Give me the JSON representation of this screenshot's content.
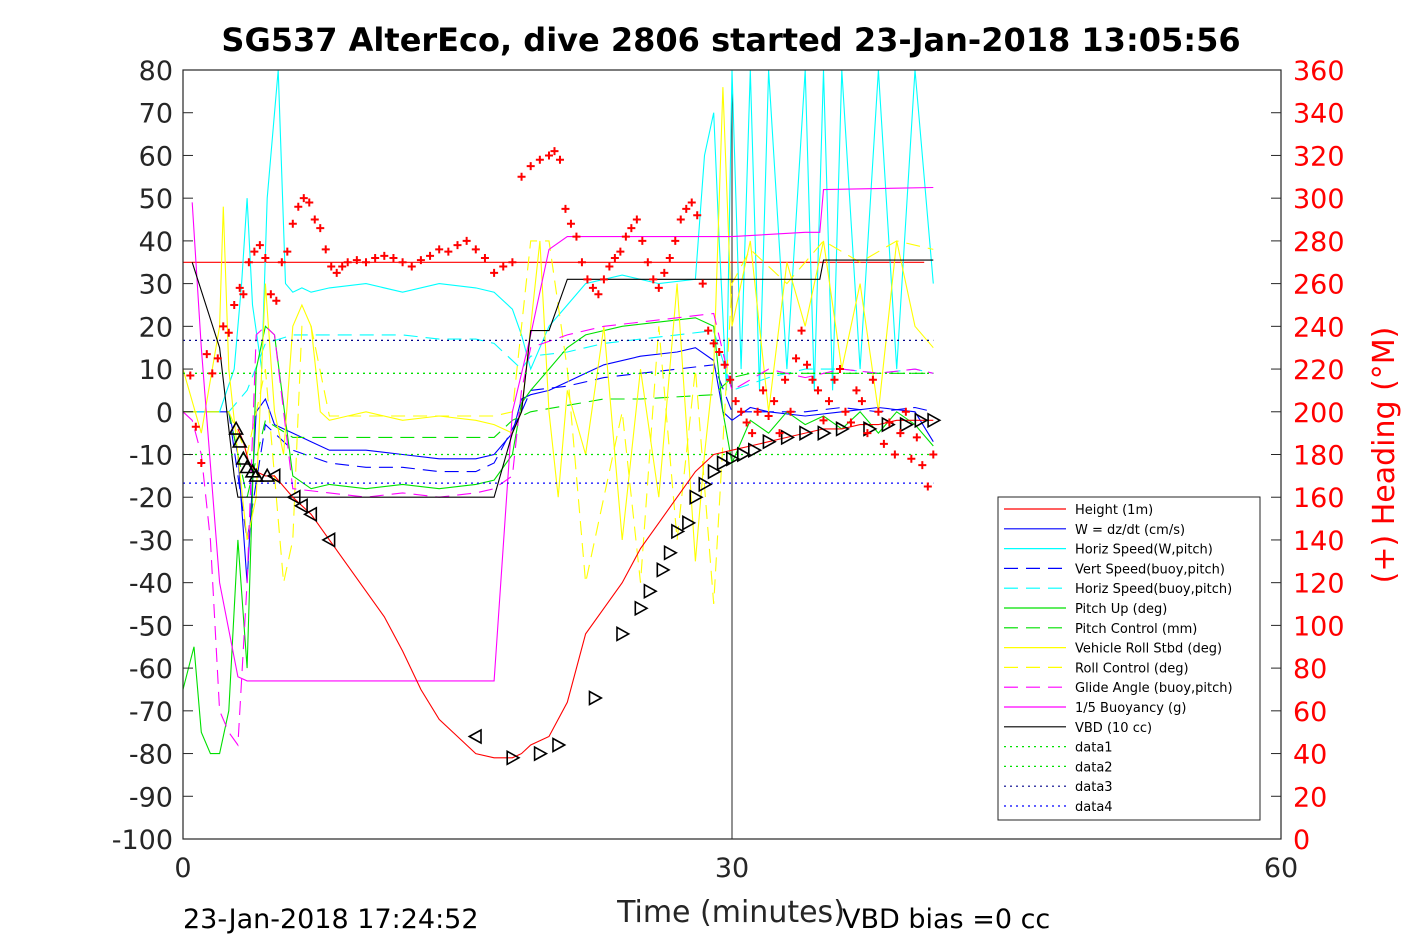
{
  "chart_data": {
    "type": "line",
    "title": "SG537 AlterEco, dive 2806 started 23-Jan-2018 13:05:56",
    "xlabel": "Time (minutes)",
    "ylabel_left": "",
    "ylabel_right": "(+) Heading (°M)",
    "xlim": [
      0,
      60
    ],
    "ylim_left": [
      -100,
      80
    ],
    "ylim_right": [
      0,
      360
    ],
    "x_ticks": [
      "0",
      "30",
      "60"
    ],
    "y_left_ticks": [
      "80",
      "70",
      "60",
      "50",
      "40",
      "30",
      "20",
      "10",
      "0",
      "-10",
      "-20",
      "-30",
      "-40",
      "-50",
      "-60",
      "-70",
      "-80",
      "-90",
      "-100"
    ],
    "y_right_ticks": [
      "360",
      "340",
      "320",
      "300",
      "280",
      "260",
      "240",
      "220",
      "200",
      "180",
      "160",
      "140",
      "120",
      "100",
      "80",
      "60",
      "40",
      "20",
      "0"
    ],
    "footer_left": "23-Jan-2018 17:24:52",
    "footer_right": "VBD bias =0 cc",
    "legend_position": "bottom-right",
    "grid": "x=30 only",
    "colors": {
      "red": "#ff0000",
      "blue": "#0000ff",
      "cyan": "#00ffff",
      "green": "#00e000",
      "yellow": "#ffff00",
      "magenta": "#ff00ff",
      "black": "#000000",
      "navy": "#00008b"
    },
    "series": [
      {
        "name": "Height (1m)",
        "color": "#ff0000",
        "dash": "solid",
        "x": [
          0,
          40.5
        ],
        "y": [
          35,
          35
        ]
      },
      {
        "name": "W = dz/dt (cm/s)",
        "color": "#0000ff",
        "dash": "solid",
        "x": [
          0,
          2.5,
          3.0,
          3.5,
          4.0,
          4.5,
          5,
          5.5,
          6,
          7,
          8,
          10,
          12,
          14,
          16,
          17,
          18,
          18.5,
          19,
          20,
          21,
          22,
          23,
          25,
          27,
          28,
          29,
          29.5,
          30,
          31,
          32,
          34,
          36,
          38,
          40,
          41
        ],
        "y": [
          0,
          0,
          -10,
          -40,
          0,
          3,
          -3,
          -4,
          -5,
          -7,
          -9,
          -9,
          -10,
          -11,
          -11,
          -10,
          -5,
          3,
          4,
          5,
          7,
          9,
          11,
          13,
          14,
          15,
          12,
          0,
          -2,
          1,
          0,
          -1,
          0,
          1,
          0,
          -7
        ]
      },
      {
        "name": "Horiz Speed(W,pitch)",
        "color": "#00ffff",
        "dash": "solid",
        "x": [
          0,
          2,
          2.8,
          3.2,
          3.5,
          3.8,
          4.3,
          4.6,
          5.2,
          5.6,
          6,
          6.5,
          7,
          8,
          10,
          12,
          14,
          16,
          17,
          18,
          18.5,
          19,
          20,
          21,
          22,
          24,
          26,
          28,
          28.5,
          29,
          29.3,
          29.7,
          30,
          30.5,
          31,
          31.5,
          32,
          33,
          34,
          34.5,
          35,
          35.5,
          36,
          37,
          38,
          39,
          40,
          41
        ],
        "y": [
          0,
          0,
          10,
          30,
          50,
          25,
          10,
          50,
          80,
          30,
          28,
          29,
          28,
          29,
          30,
          28,
          30,
          29,
          28,
          24,
          18,
          10,
          20,
          25,
          30,
          32,
          30,
          31,
          60,
          70,
          40,
          5,
          80,
          10,
          80,
          5,
          80,
          10,
          80,
          5,
          80,
          5,
          80,
          10,
          80,
          10,
          80,
          30
        ]
      },
      {
        "name": "Vert Speed(buoy,pitch)",
        "color": "#0000ff",
        "dash": "dashed",
        "x": [
          0,
          2.5,
          3.5,
          4.5,
          6,
          8,
          10,
          12,
          14,
          16,
          17,
          18.5,
          19,
          21,
          23,
          25,
          27,
          29,
          30,
          32,
          34,
          36,
          38,
          40,
          41
        ],
        "y": [
          0,
          0,
          -30,
          -3,
          -9,
          -12,
          -13,
          -13,
          -14,
          -14,
          -12,
          0,
          5,
          6,
          8,
          9,
          10,
          11,
          0,
          0,
          0,
          1,
          0,
          1,
          0
        ]
      },
      {
        "name": "Horiz Speed(buoy,pitch)",
        "color": "#00ffff",
        "dash": "dashed",
        "x": [
          0,
          2.5,
          3.5,
          4.5,
          6,
          8,
          10,
          12,
          14,
          16,
          17,
          18.5,
          19,
          21,
          23,
          25,
          27,
          29,
          30,
          32,
          34,
          36,
          38,
          40,
          41
        ],
        "y": [
          0,
          0,
          5,
          16,
          18,
          18,
          18,
          18,
          17,
          17,
          16,
          10,
          13,
          14,
          16,
          17,
          18,
          19,
          5,
          8,
          10,
          10,
          9,
          10,
          9
        ]
      },
      {
        "name": "Pitch Up (deg)",
        "color": "#00e000",
        "dash": "solid",
        "x": [
          0,
          0.6,
          1,
          1.5,
          2,
          2.5,
          3,
          3.5,
          4,
          4.5,
          5,
          6,
          7,
          8,
          10,
          12,
          14,
          16,
          17,
          18,
          18.5,
          19,
          20,
          21,
          22,
          24,
          26,
          28,
          29,
          29.5,
          30,
          31,
          32,
          33,
          34,
          35,
          36,
          37,
          38,
          39,
          40,
          41
        ],
        "y": [
          -65,
          -55,
          -75,
          -80,
          -80,
          -70,
          -30,
          -60,
          10,
          20,
          18,
          -15,
          -18,
          -17,
          -18,
          -17,
          -18,
          -17,
          -16,
          -10,
          2,
          5,
          10,
          15,
          18,
          20,
          21,
          22,
          20,
          0,
          -12,
          -2,
          -5,
          0,
          -3,
          -1,
          -4,
          0,
          -5,
          0,
          -3,
          -8
        ]
      },
      {
        "name": "Pitch Control (mm)",
        "color": "#00e000",
        "dash": "dashed",
        "x": [
          0,
          2.5,
          3.5,
          4.5,
          6,
          17,
          18,
          19,
          23,
          25,
          29,
          30,
          31,
          41
        ],
        "y": [
          0,
          0,
          -20,
          -2,
          -6,
          -6,
          -2,
          0,
          3,
          3,
          4,
          8,
          9,
          9
        ]
      },
      {
        "name": "Vehicle Roll Stbd (deg)",
        "color": "#ffff00",
        "dash": "solid",
        "x": [
          0,
          1,
          2,
          2.2,
          2.5,
          3,
          3.5,
          4,
          4.5,
          5,
          5.5,
          6,
          6.5,
          7,
          7.5,
          8,
          9,
          10,
          12,
          14,
          16,
          17,
          18,
          18.5,
          19,
          19.5,
          20,
          20.5,
          21,
          22,
          23,
          24,
          25,
          26,
          27,
          28,
          28.5,
          29,
          29.5,
          30,
          31,
          32,
          33,
          34,
          35,
          36,
          37,
          38,
          39,
          40,
          41
        ],
        "y": [
          10,
          -5,
          20,
          48,
          10,
          -10,
          -30,
          -20,
          30,
          0,
          -10,
          20,
          25,
          20,
          0,
          -2,
          -1,
          0,
          -2,
          -1,
          -2,
          -3,
          -5,
          0,
          20,
          40,
          0,
          -20,
          5,
          -10,
          20,
          -30,
          10,
          -20,
          30,
          -35,
          -10,
          10,
          76,
          20,
          40,
          0,
          35,
          20,
          40,
          10,
          30,
          0,
          40,
          20,
          15
        ]
      },
      {
        "name": "Roll Control (deg)",
        "color": "#ffff00",
        "dash": "dashed",
        "x": [
          0,
          2.5,
          3.5,
          4.5,
          5.5,
          6,
          6.5,
          7,
          8,
          17,
          18,
          19,
          20,
          21,
          22,
          23,
          24,
          25,
          26,
          27,
          28,
          29,
          30,
          31,
          33,
          35,
          37,
          39,
          41
        ],
        "y": [
          0,
          0,
          -10,
          10,
          -40,
          -30,
          20,
          20,
          -1,
          -1,
          0,
          40,
          40,
          10,
          -40,
          -20,
          0,
          -40,
          20,
          -30,
          10,
          -45,
          30,
          38,
          30,
          40,
          35,
          40,
          38
        ]
      },
      {
        "name": "Glide Angle (buoy,pitch)",
        "color": "#ff00ff",
        "dash": "dashed",
        "x": [
          0,
          0.5,
          1,
          1.5,
          2,
          2.5,
          3,
          3.5,
          4,
          4.5,
          5,
          6,
          8,
          10,
          12,
          14,
          16,
          17,
          18,
          18.5,
          19,
          21,
          23,
          25,
          27,
          29,
          30,
          32,
          34,
          36,
          38,
          40,
          41
        ],
        "y": [
          0,
          -2,
          -10,
          -30,
          -70,
          -75,
          -78,
          -40,
          18,
          20,
          18,
          -18,
          -19,
          -20,
          -19,
          -20,
          -19,
          -18,
          -15,
          5,
          15,
          18,
          20,
          21,
          22,
          23,
          5,
          10,
          8,
          10,
          9,
          10,
          9
        ]
      },
      {
        "name": "1/5 Buoyancy (g)",
        "color": "#ff00ff",
        "dash": "solid",
        "x": [
          0.5,
          1,
          2,
          3,
          3.5,
          5,
          10,
          16,
          17,
          18,
          19,
          20,
          21,
          30,
          34,
          34.8,
          35,
          41
        ],
        "y": [
          49,
          15,
          -40,
          -62,
          -63,
          -63,
          -63,
          -63,
          -63,
          0,
          18,
          38,
          41,
          41,
          42,
          42,
          52,
          52.5
        ]
      },
      {
        "name": "VBD (10 cc)",
        "color": "#000000",
        "dash": "solid",
        "x": [
          0.5,
          2,
          2.8,
          3,
          5,
          10,
          16,
          17,
          18,
          18.5,
          19,
          20,
          21,
          30,
          34,
          34.8,
          35,
          41
        ],
        "y": [
          35,
          15,
          -15,
          -20,
          -20,
          -20,
          -20,
          -20,
          -5,
          0,
          19,
          19,
          31,
          31,
          31,
          31,
          35.5,
          35.5
        ]
      },
      {
        "name": "data1",
        "color": "#00e000",
        "dash": "dotted",
        "x": [
          0,
          41
        ],
        "y": [
          9,
          9
        ]
      },
      {
        "name": "data2",
        "color": "#00e000",
        "dash": "dotted",
        "x": [
          0,
          41
        ],
        "y": [
          -10,
          -10
        ]
      },
      {
        "name": "data3",
        "color": "#00008b",
        "dash": "dotted",
        "x": [
          0,
          41
        ],
        "y": [
          16.7,
          16.7
        ]
      },
      {
        "name": "data4",
        "color": "#0000ff",
        "dash": "dotted",
        "x": [
          0,
          41
        ],
        "y": [
          -16.7,
          -16.7
        ]
      }
    ],
    "depth_path": {
      "color": "#ff0000",
      "x": [
        3,
        3.3,
        3.6,
        4,
        4.5,
        5,
        6,
        7,
        8,
        9,
        10,
        11,
        12,
        13,
        14,
        15,
        16,
        17,
        18,
        18.5,
        19,
        20,
        21,
        22,
        23,
        24,
        25,
        26,
        27,
        28,
        29,
        30,
        31,
        32,
        33,
        34,
        35,
        36,
        37,
        38,
        39,
        40,
        41
      ],
      "y": [
        -4,
        -7,
        -12,
        -14,
        -15,
        -15,
        -20,
        -24,
        -30,
        -36,
        -42,
        -48,
        -56,
        -65,
        -72,
        -76,
        -80,
        -81,
        -81,
        -80,
        -78,
        -76,
        -68,
        -52,
        -46,
        -40,
        -32,
        -26,
        -20,
        -14,
        -10,
        -9,
        -8,
        -7,
        -6,
        -5,
        -4,
        -4,
        -3,
        -3,
        -2,
        -2,
        -2
      ],
      "markers_x": [
        2.9,
        3.1,
        3.3,
        3.5,
        3.8,
        4.0,
        4.6,
        5.0,
        6.1,
        6.5,
        7.0,
        8.0,
        16.0,
        18.0,
        19.5,
        20.5,
        22.5,
        24.0,
        25.0,
        25.5,
        26.2,
        26.6,
        27.0,
        27.6,
        28.0,
        28.5,
        29.0,
        29.5,
        30.0,
        30.6,
        31.2,
        32.0,
        33.0,
        34.0,
        35.0,
        36.0,
        37.5,
        38.5,
        39.5,
        40.3,
        41.0
      ],
      "markers_y": [
        -4,
        -7,
        -11,
        -13,
        -14,
        -15,
        -15,
        -15,
        -20,
        -22,
        -24,
        -30,
        -76,
        -81,
        -80,
        -78,
        -67,
        -52,
        -46,
        -42,
        -37,
        -33,
        -28,
        -26,
        -20,
        -17,
        -14,
        -12,
        -11,
        -10,
        -9,
        -7,
        -6,
        -5,
        -5,
        -4,
        -4,
        -3,
        -3,
        -2,
        -2
      ]
    },
    "heading": {
      "name": "(+) Heading (°M)",
      "color": "#ff0000",
      "x": [
        0.4,
        0.7,
        1.0,
        1.3,
        1.6,
        1.9,
        2.2,
        2.5,
        2.8,
        3.1,
        3.3,
        3.6,
        3.9,
        4.2,
        4.5,
        4.8,
        5.1,
        5.4,
        5.7,
        6.0,
        6.3,
        6.6,
        6.9,
        7.2,
        7.5,
        7.8,
        8.1,
        8.4,
        8.7,
        9.0,
        9.5,
        10,
        10.5,
        11,
        11.5,
        12,
        12.5,
        13,
        13.5,
        14,
        14.5,
        15,
        15.5,
        16,
        16.5,
        17,
        17.5,
        18,
        18.5,
        19,
        19.5,
        20,
        20.3,
        20.6,
        20.9,
        21.2,
        21.5,
        21.8,
        22.1,
        22.4,
        22.7,
        23,
        23.3,
        23.6,
        23.9,
        24.2,
        24.5,
        24.8,
        25.1,
        25.4,
        25.7,
        26,
        26.3,
        26.6,
        26.9,
        27.2,
        27.5,
        27.8,
        28.1,
        28.4,
        28.7,
        29,
        29.3,
        29.6,
        29.9,
        30.2,
        30.5,
        30.8,
        31.1,
        31.4,
        31.7,
        32.0,
        32.3,
        32.6,
        32.9,
        33.2,
        33.5,
        33.8,
        34.1,
        34.4,
        34.7,
        35.0,
        35.3,
        35.6,
        35.9,
        36.2,
        36.5,
        36.8,
        37.1,
        37.4,
        37.7,
        38.0,
        38.3,
        38.6,
        38.9,
        39.2,
        39.5,
        39.8,
        40.1,
        40.4,
        40.7,
        41.0
      ],
      "y": [
        217,
        193,
        176,
        227,
        218,
        225,
        240,
        237,
        250,
        258,
        255,
        270,
        275,
        278,
        272,
        255,
        252,
        270,
        275,
        288,
        296,
        300,
        298,
        290,
        286,
        276,
        268,
        265,
        268,
        270,
        271,
        270,
        272,
        273,
        272,
        270,
        268,
        271,
        273,
        276,
        275,
        278,
        280,
        276,
        272,
        265,
        268,
        270,
        310,
        315,
        318,
        320,
        322,
        318,
        295,
        288,
        282,
        270,
        262,
        258,
        255,
        262,
        268,
        272,
        275,
        282,
        286,
        290,
        280,
        270,
        262,
        258,
        265,
        272,
        280,
        290,
        295,
        298,
        292,
        260,
        238,
        232,
        228,
        222,
        215,
        205,
        200,
        195,
        190,
        200,
        210,
        198,
        205,
        190,
        215,
        200,
        225,
        238,
        222,
        215,
        210,
        196,
        205,
        215,
        220,
        200,
        195,
        210,
        205,
        190,
        215,
        200,
        185,
        195,
        180,
        190,
        200,
        178,
        188,
        175,
        165,
        180
      ]
    }
  }
}
